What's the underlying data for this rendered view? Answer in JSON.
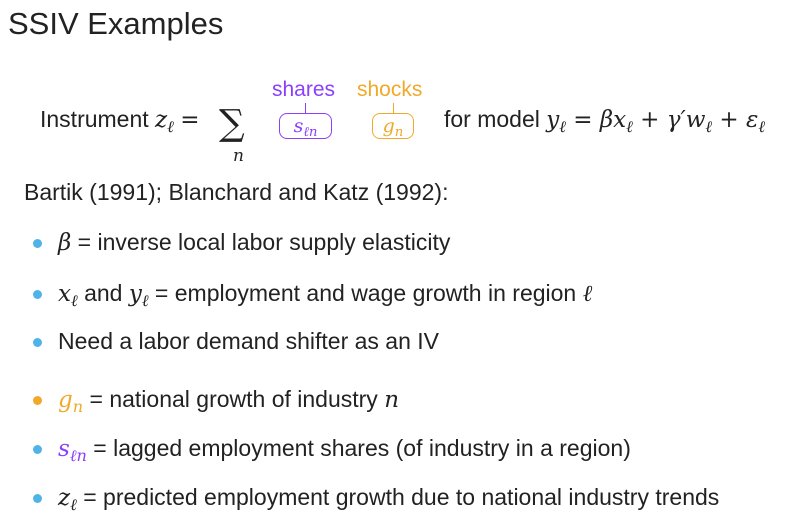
{
  "title": "SSIV Examples",
  "equation": {
    "lead": "Instrument",
    "lhs_var": "z",
    "lhs_sub": "ℓ",
    "equals": "=",
    "sum_symbol": "∑",
    "sum_index": "n",
    "shares_label": "shares",
    "shocks_label": "shocks",
    "share_var": "s",
    "share_sub": "ℓn",
    "shock_var": "g",
    "shock_sub": "n",
    "model_lead": "for model",
    "model_rhs": "y",
    "model_rhs_sub": "ℓ",
    "model_eq": " = βx",
    "model_x_sub": "ℓ",
    "model_mid": " + γ′w",
    "model_w_sub": "ℓ",
    "model_end": " + ε",
    "model_e_sub": "ℓ"
  },
  "intro": "Bartik (1991); Blanchard and Katz (1992):",
  "bullets": [
    {
      "sym": "β",
      "text": " = inverse local labor supply elasticity"
    },
    {
      "sym1": "x",
      "sub1": "ℓ",
      "and": " and ",
      "sym2": "y",
      "sub2": "ℓ",
      "text": " = employment and wage growth in region ",
      "tail": "ℓ"
    },
    {
      "text": "Need a labor demand shifter as an IV"
    },
    {
      "sym": "g",
      "sub": "n",
      "text": " = national growth of industry ",
      "tail": "n"
    },
    {
      "sym": "s",
      "sub": "ℓn",
      "text": " = lagged employment shares (of industry in a region)"
    },
    {
      "sym": "z",
      "sub": "ℓ",
      "text": " = predicted employment growth due to national industry trends"
    }
  ],
  "colors": {
    "shares": "#8a3ffc",
    "shocks": "#f0a92a",
    "bullet": "#4fb3e8",
    "text": "#222222"
  }
}
